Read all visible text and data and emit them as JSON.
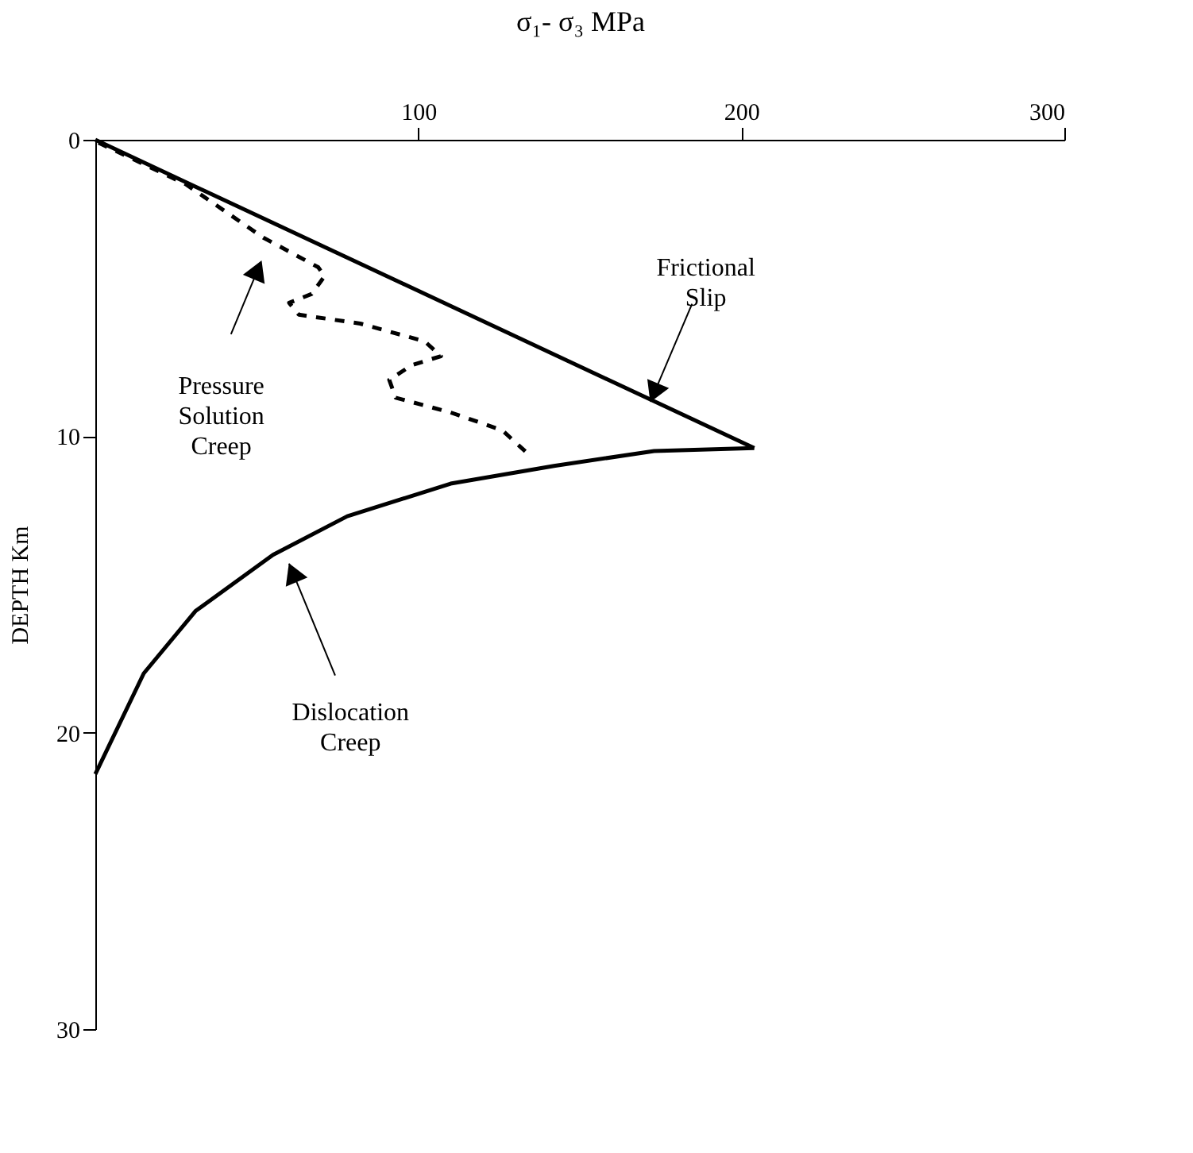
{
  "chart_data": {
    "type": "line",
    "xlabel": "σ₁- σ₃  MPa",
    "ylabel": "DEPTH Km",
    "xlim": [
      0,
      300
    ],
    "xticks": [
      100,
      200,
      300
    ],
    "ylim": [
      30,
      0
    ],
    "yticks": [
      0,
      10,
      20,
      30
    ],
    "grid": false,
    "series": [
      {
        "color": "#000000",
        "line_style": "solid",
        "x": [
          0,
          204
        ],
        "values": [
          0,
          10.4
        ]
      },
      {
        "color": "#000000",
        "line_style": "solid",
        "x": [
          204,
          173,
          142,
          110,
          78,
          55,
          31,
          15,
          0
        ],
        "values": [
          10.4,
          10.5,
          11.0,
          11.6,
          12.7,
          14.0,
          15.9,
          18.0,
          21.4
        ]
      },
      {
        "color": "#000000",
        "line_style": "dashed",
        "x": [
          1,
          28,
          52,
          69,
          71,
          67,
          60,
          63,
          82,
          102,
          107,
          98,
          91,
          93,
          110,
          126,
          134
        ],
        "values": [
          0.1,
          1.5,
          3.3,
          4.3,
          4.6,
          5.2,
          5.5,
          5.9,
          6.2,
          6.8,
          7.3,
          7.6,
          8.1,
          8.7,
          9.2,
          9.8,
          10.6
        ]
      }
    ],
    "annotations": [
      {
        "text": "Frictional\nSlip",
        "x": 172,
        "y": 8.8
      },
      "Pressure\nSolution\nCreep",
      "Dislocation\nCreep"
    ]
  }
}
